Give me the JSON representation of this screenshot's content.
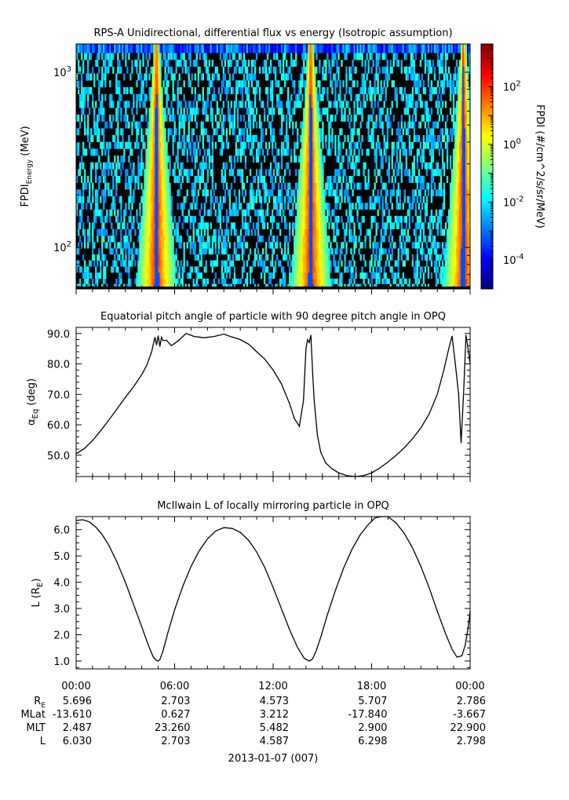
{
  "chart_data": [
    {
      "type": "heatmap",
      "title": "RPS-A Unidirectional, differential flux vs energy (Isotropic assumption)",
      "ylabel": "FPDI",
      "ylabel_sub": "Energy",
      "ylabel_unit": "(MeV)",
      "y_scale": "log",
      "ylim": [
        58,
        1450
      ],
      "y_ticks": [
        {
          "value": 100,
          "base": "10",
          "exp": "2"
        },
        {
          "value": 1000,
          "base": "10",
          "exp": "3"
        }
      ],
      "zlabel": "FPDI (#/cm^2/s/sr/MeV)",
      "z_scale": "log",
      "zlim": [
        1e-05,
        3000
      ],
      "z_ticks": [
        {
          "value": 0.0001,
          "base": "10",
          "exp": "-4"
        },
        {
          "value": 0.01,
          "base": "10",
          "exp": "-2"
        },
        {
          "value": 1,
          "base": "10",
          "exp": "0"
        },
        {
          "value": 100,
          "base": "10",
          "exp": "2"
        }
      ],
      "colormap": [
        "#00007f",
        "#0000ff",
        "#007fff",
        "#00ffff",
        "#7fff7f",
        "#ffff00",
        "#ff7f00",
        "#ff0000",
        "#7f0000"
      ],
      "fill_color": "#000000",
      "bright_passes_hours": [
        4.6,
        5.2,
        14.2,
        14.4,
        23.4,
        23.8
      ],
      "energy_channels_mev": [
        60,
        64,
        69,
        75,
        81,
        88,
        95,
        103,
        112,
        122,
        133,
        145,
        158,
        172,
        188,
        205,
        224,
        245,
        268,
        293,
        320,
        350,
        383,
        419,
        458,
        501,
        548,
        600,
        656,
        718,
        786,
        860,
        941,
        1030,
        1127,
        1234,
        1350
      ]
    },
    {
      "type": "line",
      "title": "Equatorial pitch angle of particle with 90 degree pitch angle in OPQ",
      "ylabel": "α",
      "ylabel_sub": "Eq",
      "ylabel_unit": "(deg)",
      "ylim": [
        43,
        92
      ],
      "y_ticks": [
        50,
        60,
        70,
        80,
        90
      ],
      "series": [
        {
          "x": [
            0,
            0.5,
            1,
            1.5,
            2,
            2.5,
            3,
            3.5,
            4,
            4.3,
            4.6,
            4.8,
            4.9,
            5.0,
            5.1,
            5.2,
            5.3,
            5.5,
            5.8,
            6.2,
            6.7,
            7.2,
            7.8,
            8.4,
            9.0,
            9.4,
            10,
            10.5,
            11,
            11.5,
            12,
            12.5,
            13,
            13.3,
            13.6,
            13.85,
            14.0,
            14.1,
            14.2,
            14.3,
            14.4,
            14.5,
            14.7,
            14.9,
            15.2,
            15.6,
            16.0,
            16.5,
            17.0,
            17.5,
            18.0,
            18.5,
            19,
            19.5,
            20,
            20.5,
            21,
            21.5,
            22,
            22.4,
            22.7,
            22.9,
            23.1,
            23.3,
            23.45,
            23.6,
            23.75,
            23.9,
            24.0
          ],
          "y": [
            50.5,
            52.2,
            54.8,
            58.1,
            61.6,
            65.3,
            69.0,
            72.5,
            76.5,
            79.5,
            84.0,
            88.8,
            86.2,
            89.3,
            85.7,
            88.8,
            87.6,
            87.8,
            86.0,
            87.5,
            90.0,
            89.0,
            88.6,
            89.0,
            89.8,
            89.0,
            88.0,
            86.5,
            84.0,
            81.5,
            78.0,
            73.5,
            67.0,
            62.0,
            59.5,
            68.0,
            85.0,
            88.0,
            87.0,
            89.5,
            78.0,
            68.0,
            56.5,
            51.0,
            47.5,
            45.5,
            44.2,
            43.3,
            43.0,
            43.3,
            44.2,
            45.8,
            47.8,
            50.0,
            52.5,
            55.5,
            59.0,
            63.5,
            70.0,
            78.0,
            85.0,
            89.2,
            80.0,
            70.0,
            54.0,
            70.0,
            89.5,
            84.0,
            80.0
          ]
        }
      ]
    },
    {
      "type": "line",
      "title": "McIlwain L of locally mirroring particle in OPQ",
      "ylabel": "L",
      "ylabel_unit_pre": "(R",
      "ylabel_unit_sub": "E",
      "ylabel_unit_post": ")",
      "ylim": [
        0.7,
        6.5
      ],
      "y_ticks": [
        1,
        2,
        3,
        4,
        5,
        6
      ],
      "series": [
        {
          "x": [
            0,
            0.4,
            0.8,
            1.2,
            1.6,
            2,
            2.5,
            3,
            3.5,
            4,
            4.4,
            4.7,
            4.9,
            5.0,
            5.1,
            5.3,
            5.6,
            6.0,
            6.5,
            7,
            7.5,
            8,
            8.5,
            9,
            9.5,
            10,
            10.5,
            11,
            11.5,
            12,
            12.5,
            13,
            13.5,
            13.9,
            14.2,
            14.4,
            14.6,
            14.9,
            15.3,
            15.8,
            16.3,
            16.8,
            17.3,
            17.8,
            18.2,
            18.6,
            19,
            19.5,
            20,
            20.5,
            21,
            21.5,
            22,
            22.5,
            22.9,
            23.2,
            23.5,
            23.7,
            23.9,
            24.0
          ],
          "y": [
            6.35,
            6.38,
            6.3,
            6.1,
            5.8,
            5.4,
            4.75,
            4.0,
            3.15,
            2.3,
            1.6,
            1.15,
            1.02,
            1.0,
            1.05,
            1.4,
            2.1,
            2.95,
            3.85,
            4.6,
            5.2,
            5.65,
            5.95,
            6.08,
            6.05,
            5.9,
            5.6,
            5.15,
            4.55,
            3.8,
            3.0,
            2.2,
            1.5,
            1.1,
            1.0,
            1.08,
            1.35,
            1.9,
            2.75,
            3.7,
            4.55,
            5.25,
            5.8,
            6.2,
            6.45,
            6.55,
            6.5,
            6.25,
            5.85,
            5.3,
            4.6,
            3.8,
            2.9,
            2.05,
            1.45,
            1.15,
            1.2,
            1.6,
            2.35,
            2.9
          ]
        }
      ]
    }
  ],
  "x_axis": {
    "range_hours": [
      0,
      24
    ],
    "tick_labels": [
      "00:00",
      "06:00",
      "12:00",
      "18:00",
      "00:00"
    ],
    "tick_hours": [
      0,
      6,
      12,
      18,
      24
    ],
    "date_label": "2013-01-07 (007)"
  },
  "ephemeris": {
    "rows": [
      {
        "label": "R",
        "label_sub": "E",
        "values": [
          "5.696",
          "2.703",
          "4.573",
          "5.707",
          "2.786"
        ]
      },
      {
        "label": "MLat",
        "label_sub": "",
        "values": [
          "-13.610",
          "0.627",
          "3.212",
          "-17.840",
          "-3.667"
        ]
      },
      {
        "label": "MLT",
        "label_sub": "",
        "values": [
          "2.487",
          "23.260",
          "5.482",
          "2.900",
          "22.900"
        ]
      },
      {
        "label": "L",
        "label_sub": "",
        "values": [
          "6.030",
          "2.703",
          "4.587",
          "6.298",
          "2.798"
        ]
      }
    ]
  }
}
